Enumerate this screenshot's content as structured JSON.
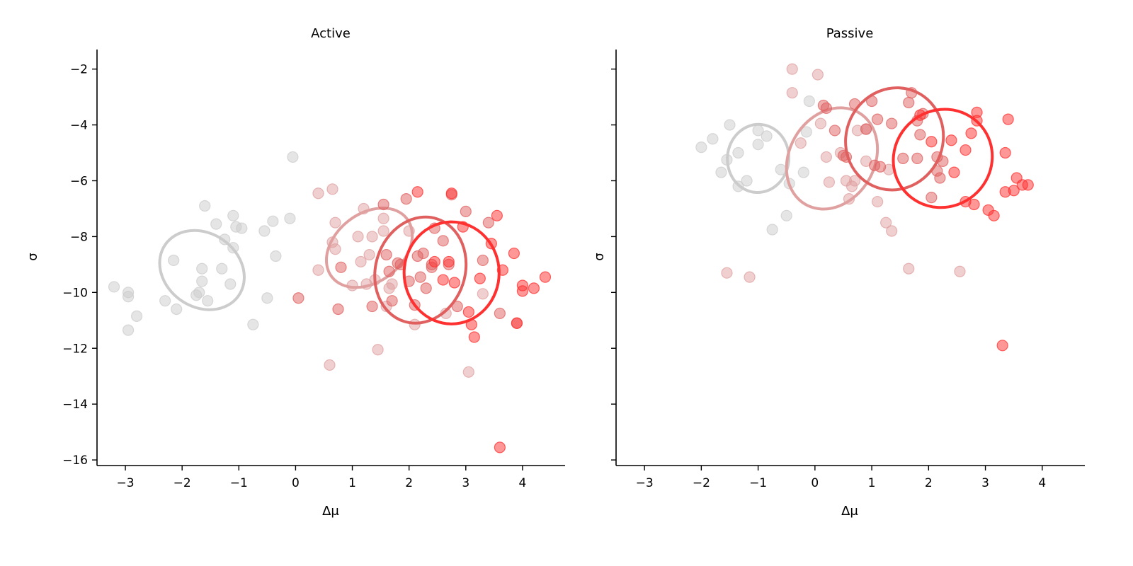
{
  "chart_data": [
    {
      "type": "scatter",
      "title": "Active",
      "xlabel": "Δμ",
      "ylabel": "σ",
      "xlim": [
        -3.5,
        4.75
      ],
      "ylim": [
        -16.2,
        -1.3
      ],
      "xticks": [
        -3,
        -2,
        -1,
        0,
        1,
        2,
        3,
        4
      ],
      "yticks": [
        -16,
        -14,
        -12,
        -10,
        -8,
        -6,
        -4,
        -2
      ],
      "xtick_labels": [
        "−3",
        "−2",
        "−1",
        "0",
        "1",
        "2",
        "3",
        "4"
      ],
      "ytick_labels": [
        "−16",
        "−14",
        "−12",
        "−10",
        "−8",
        "−6",
        "−4",
        "−2"
      ],
      "grid": false,
      "legend": "none",
      "series": [
        {
          "color": "#cccccc",
          "points": [
            [
              -3.2,
              -9.8
            ],
            [
              -2.95,
              -10.0
            ],
            [
              -2.95,
              -10.15
            ],
            [
              -2.95,
              -11.35
            ],
            [
              -2.8,
              -10.85
            ],
            [
              -2.3,
              -10.3
            ],
            [
              -2.15,
              -8.85
            ],
            [
              -2.1,
              -10.6
            ],
            [
              -1.75,
              -10.1
            ],
            [
              -1.7,
              -10.0
            ],
            [
              -1.65,
              -9.15
            ],
            [
              -1.65,
              -9.6
            ],
            [
              -1.6,
              -6.9
            ],
            [
              -1.55,
              -10.3
            ],
            [
              -1.4,
              -7.55
            ],
            [
              -1.3,
              -9.15
            ],
            [
              -1.25,
              -8.1
            ],
            [
              -1.15,
              -9.7
            ],
            [
              -1.1,
              -8.4
            ],
            [
              -1.1,
              -7.25
            ],
            [
              -1.05,
              -7.65
            ],
            [
              -0.95,
              -7.7
            ],
            [
              -0.75,
              -11.15
            ],
            [
              -0.55,
              -7.8
            ],
            [
              -0.5,
              -10.2
            ],
            [
              -0.4,
              -7.45
            ],
            [
              -0.35,
              -8.7
            ],
            [
              -0.1,
              -7.35
            ],
            [
              -0.05,
              -5.15
            ]
          ],
          "ellipse": {
            "cx": -1.65,
            "cy": -9.2,
            "rx": 0.65,
            "ry": 1.6,
            "angle_deg": 55
          }
        },
        {
          "color": "#e0a0a0",
          "points": [
            [
              0.4,
              -9.2
            ],
            [
              0.4,
              -6.45
            ],
            [
              0.6,
              -12.6
            ],
            [
              0.65,
              -8.2
            ],
            [
              0.65,
              -6.3
            ],
            [
              0.7,
              -8.45
            ],
            [
              0.7,
              -7.5
            ],
            [
              1.0,
              -9.75
            ],
            [
              1.1,
              -8.0
            ],
            [
              1.15,
              -8.9
            ],
            [
              1.2,
              -7.0
            ],
            [
              1.25,
              -9.7
            ],
            [
              1.3,
              -8.65
            ],
            [
              1.35,
              -8.0
            ],
            [
              1.4,
              -9.55
            ],
            [
              1.45,
              -12.05
            ],
            [
              1.55,
              -7.35
            ],
            [
              1.55,
              -7.8
            ],
            [
              1.6,
              -10.5
            ],
            [
              1.65,
              -9.85
            ],
            [
              1.7,
              -9.7
            ],
            [
              2.0,
              -7.8
            ],
            [
              2.1,
              -11.15
            ],
            [
              3.3,
              -10.05
            ],
            [
              3.05,
              -12.85
            ],
            [
              2.65,
              -10.75
            ]
          ],
          "ellipse": {
            "cx": 1.3,
            "cy": -8.4,
            "rx": 0.6,
            "ry": 1.7,
            "angle_deg": -52
          }
        },
        {
          "color": "#e06060",
          "points": [
            [
              0.05,
              -10.2
            ],
            [
              0.8,
              -9.1
            ],
            [
              0.75,
              -10.6
            ],
            [
              1.35,
              -10.5
            ],
            [
              1.55,
              -6.85
            ],
            [
              1.6,
              -8.65
            ],
            [
              1.65,
              -9.25
            ],
            [
              1.7,
              -10.3
            ],
            [
              1.8,
              -8.95
            ],
            [
              1.85,
              -9.0
            ],
            [
              1.95,
              -6.65
            ],
            [
              2.0,
              -9.6
            ],
            [
              2.1,
              -10.45
            ],
            [
              2.15,
              -8.7
            ],
            [
              2.2,
              -9.45
            ],
            [
              2.25,
              -8.6
            ],
            [
              2.3,
              -9.85
            ],
            [
              2.4,
              -9.0
            ],
            [
              2.4,
              -9.1
            ],
            [
              2.45,
              -7.7
            ],
            [
              2.6,
              -8.15
            ],
            [
              2.7,
              -9.0
            ],
            [
              2.75,
              -6.5
            ],
            [
              2.85,
              -10.5
            ],
            [
              3.0,
              -7.1
            ],
            [
              3.3,
              -8.85
            ],
            [
              3.4,
              -7.5
            ],
            [
              3.6,
              -10.75
            ],
            [
              3.9,
              -11.1
            ]
          ],
          "ellipse": {
            "cx": 2.2,
            "cy": -9.2,
            "rx": 0.95,
            "ry": 1.6,
            "angle_deg": 72
          }
        },
        {
          "color": "#ff3030",
          "points": [
            [
              2.15,
              -6.4
            ],
            [
              2.45,
              -8.9
            ],
            [
              2.6,
              -9.55
            ],
            [
              2.7,
              -8.9
            ],
            [
              2.75,
              -6.45
            ],
            [
              2.8,
              -9.65
            ],
            [
              2.95,
              -7.65
            ],
            [
              3.05,
              -10.7
            ],
            [
              3.1,
              -11.15
            ],
            [
              3.15,
              -11.6
            ],
            [
              3.25,
              -9.5
            ],
            [
              3.45,
              -8.25
            ],
            [
              3.55,
              -7.25
            ],
            [
              3.6,
              -15.55
            ],
            [
              3.65,
              -9.2
            ],
            [
              3.85,
              -8.6
            ],
            [
              3.9,
              -11.1
            ],
            [
              4.0,
              -9.95
            ],
            [
              4.0,
              -9.75
            ],
            [
              4.2,
              -9.85
            ],
            [
              4.4,
              -9.45
            ]
          ],
          "ellipse": {
            "cx": 2.75,
            "cy": -9.3,
            "rx": 0.9,
            "ry": 1.7,
            "angle_deg": 90
          }
        }
      ]
    },
    {
      "type": "scatter",
      "title": "Passive",
      "xlabel": "Δμ",
      "ylabel": "σ",
      "xlim": [
        -3.5,
        4.75
      ],
      "ylim": [
        -16.2,
        -1.3
      ],
      "xticks": [
        -3,
        -2,
        -1,
        0,
        1,
        2,
        3,
        4
      ],
      "yticks": [
        -16,
        -14,
        -12,
        -10,
        -8,
        -6,
        -4,
        -2
      ],
      "xtick_labels": [
        "−3",
        "−2",
        "−1",
        "0",
        "1",
        "2",
        "3",
        "4"
      ],
      "grid": false,
      "legend": "none",
      "series": [
        {
          "color": "#cccccc",
          "points": [
            [
              -2.0,
              -4.8
            ],
            [
              -1.8,
              -4.5
            ],
            [
              -1.65,
              -5.7
            ],
            [
              -1.55,
              -5.25
            ],
            [
              -1.5,
              -4.0
            ],
            [
              -1.35,
              -5.0
            ],
            [
              -1.35,
              -6.2
            ],
            [
              -1.2,
              -6.0
            ],
            [
              -1.0,
              -4.2
            ],
            [
              -1.0,
              -4.7
            ],
            [
              -0.85,
              -4.4
            ],
            [
              -0.75,
              -7.75
            ],
            [
              -0.6,
              -5.6
            ],
            [
              -0.5,
              -7.25
            ],
            [
              -0.45,
              -6.1
            ],
            [
              -0.2,
              -5.7
            ],
            [
              -0.15,
              -4.25
            ],
            [
              -0.1,
              -3.15
            ]
          ],
          "ellipse": {
            "cx": -1.0,
            "cy": -5.2,
            "rx": 0.6,
            "ry": 1.1,
            "angle_deg": 85
          }
        },
        {
          "color": "#e0a0a0",
          "points": [
            [
              -1.55,
              -9.3
            ],
            [
              -1.15,
              -9.45
            ],
            [
              -0.4,
              -2.0
            ],
            [
              -0.4,
              -2.85
            ],
            [
              -0.25,
              -4.65
            ],
            [
              0.05,
              -2.2
            ],
            [
              0.1,
              -3.95
            ],
            [
              0.2,
              -5.15
            ],
            [
              0.25,
              -6.05
            ],
            [
              0.45,
              -5.0
            ],
            [
              0.55,
              -6.0
            ],
            [
              0.6,
              -6.65
            ],
            [
              0.65,
              -6.2
            ],
            [
              0.7,
              -6.0
            ],
            [
              0.75,
              -4.2
            ],
            [
              0.9,
              -5.3
            ],
            [
              1.1,
              -6.75
            ],
            [
              1.25,
              -7.5
            ],
            [
              1.3,
              -5.6
            ],
            [
              1.35,
              -7.8
            ],
            [
              2.55,
              -9.25
            ],
            [
              1.65,
              -9.15
            ],
            [
              0.9,
              -4.15
            ]
          ],
          "ellipse": {
            "cx": 0.3,
            "cy": -5.2,
            "rx": 0.75,
            "ry": 1.9,
            "angle_deg": -30
          }
        },
        {
          "color": "#e06060",
          "points": [
            [
              0.15,
              -3.3
            ],
            [
              0.2,
              -3.4
            ],
            [
              0.35,
              -4.2
            ],
            [
              0.7,
              -3.25
            ],
            [
              0.9,
              -4.15
            ],
            [
              1.0,
              -3.15
            ],
            [
              1.05,
              -5.45
            ],
            [
              1.1,
              -3.8
            ],
            [
              1.15,
              -5.5
            ],
            [
              1.35,
              -3.95
            ],
            [
              1.55,
              -5.2
            ],
            [
              1.65,
              -3.2
            ],
            [
              1.7,
              -2.85
            ],
            [
              1.8,
              -3.85
            ],
            [
              1.8,
              -5.2
            ],
            [
              1.85,
              -4.35
            ],
            [
              1.9,
              -3.6
            ],
            [
              2.05,
              -6.6
            ],
            [
              2.15,
              -5.15
            ],
            [
              2.15,
              -5.65
            ],
            [
              2.2,
              -5.9
            ],
            [
              2.25,
              -5.3
            ],
            [
              0.5,
              -5.1
            ],
            [
              0.55,
              -5.15
            ]
          ],
          "ellipse": {
            "cx": 1.4,
            "cy": -4.5,
            "rx": 0.85,
            "ry": 1.85,
            "angle_deg": -25
          }
        },
        {
          "color": "#ff3030",
          "points": [
            [
              1.85,
              -3.65
            ],
            [
              2.05,
              -4.6
            ],
            [
              2.4,
              -4.55
            ],
            [
              2.45,
              -5.7
            ],
            [
              2.65,
              -4.9
            ],
            [
              2.65,
              -6.75
            ],
            [
              2.75,
              -4.3
            ],
            [
              2.8,
              -6.85
            ],
            [
              2.85,
              -3.55
            ],
            [
              2.85,
              -3.85
            ],
            [
              3.05,
              -7.05
            ],
            [
              3.15,
              -7.25
            ],
            [
              3.3,
              -11.9
            ],
            [
              3.35,
              -5.0
            ],
            [
              3.35,
              -6.4
            ],
            [
              3.4,
              -3.8
            ],
            [
              3.5,
              -6.35
            ],
            [
              3.55,
              -5.9
            ],
            [
              3.65,
              -6.15
            ],
            [
              3.75,
              -6.15
            ]
          ],
          "ellipse": {
            "cx": 2.25,
            "cy": -5.2,
            "rx": 0.85,
            "ry": 1.8,
            "angle_deg": -50
          }
        }
      ]
    }
  ]
}
